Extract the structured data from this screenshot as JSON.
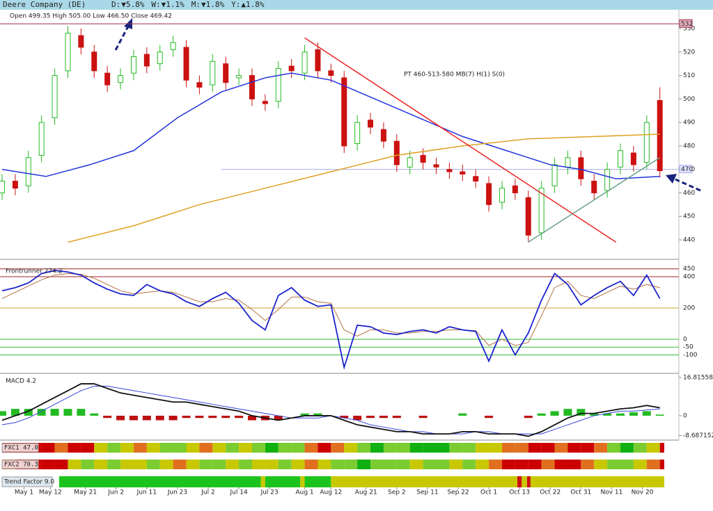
{
  "header": {
    "title": "Deere Company (DE)",
    "changes": [
      {
        "label": "D:",
        "value": "▼5.8%",
        "color": "#cc0000"
      },
      {
        "label": "W:",
        "value": "▼1.1%",
        "color": "#cc0000"
      },
      {
        "label": "M:",
        "value": "▼1.8%",
        "color": "#cc0000"
      },
      {
        "label": "Y:",
        "value": "▲1.8%",
        "color": "#119911"
      }
    ],
    "ohlc": "Open 499.35  High 505.00  Low 466.50  Close 469.42"
  },
  "chart_data": [
    {
      "type": "candlestick",
      "annotation": "PT 460-513-580 MB(7) H(1) S(0)",
      "xlim": [
        0,
        151
      ],
      "ylim": [
        432,
        538
      ],
      "yticks": [
        440,
        450,
        460,
        470,
        480,
        490,
        500,
        510,
        520,
        530
      ],
      "xticks": [
        {
          "value": 5,
          "label": "May 1"
        },
        {
          "value": 11,
          "label": "May 12"
        },
        {
          "value": 19,
          "label": "May 21"
        },
        {
          "value": 26,
          "label": "Jun 2"
        },
        {
          "value": 33,
          "label": "Jun 11"
        },
        {
          "value": 40,
          "label": "Jun 23"
        },
        {
          "value": 47,
          "label": "Jul 2"
        },
        {
          "value": 54,
          "label": "Jul 14"
        },
        {
          "value": 61,
          "label": "Jul 23"
        },
        {
          "value": 69,
          "label": "Aug 1"
        },
        {
          "value": 75,
          "label": "Aug 12"
        },
        {
          "value": 83,
          "label": "Aug 21"
        },
        {
          "value": 90,
          "label": "Sep 2"
        },
        {
          "value": 97,
          "label": "Sep 11"
        },
        {
          "value": 104,
          "label": "Sep 22"
        },
        {
          "value": 111,
          "label": "Oct 1"
        },
        {
          "value": 118,
          "label": "Oct 13"
        },
        {
          "value": 125,
          "label": "Oct 22"
        },
        {
          "value": 132,
          "label": "Oct 31"
        },
        {
          "value": 139,
          "label": "Nov 11"
        },
        {
          "value": 146,
          "label": "Nov 20"
        }
      ],
      "up_color": "#22bb22",
      "down_color": "#cc1111",
      "x": [
        0,
        3,
        6,
        9,
        12,
        15,
        18,
        21,
        24,
        27,
        30,
        33,
        36,
        39,
        42,
        45,
        48,
        51,
        54,
        57,
        60,
        63,
        66,
        69,
        72,
        75,
        78,
        81,
        84,
        87,
        90,
        93,
        96,
        99,
        102,
        105,
        108,
        111,
        114,
        117,
        120,
        123,
        126,
        129,
        132,
        135,
        138,
        141,
        144,
        147,
        150
      ],
      "open": [
        460,
        465,
        463,
        476,
        492,
        512,
        527,
        520,
        511,
        507,
        511,
        519,
        515,
        521,
        522,
        507,
        506,
        515,
        509,
        510,
        499,
        499,
        514,
        511,
        521,
        512,
        509,
        481,
        491,
        487,
        482,
        471,
        476,
        472,
        470,
        469,
        467,
        464,
        456,
        463,
        458,
        443,
        463,
        471,
        475,
        465,
        461,
        471,
        477,
        473,
        499.35
      ],
      "high": [
        468,
        468,
        478,
        493,
        513,
        531,
        530,
        523,
        514,
        513,
        521,
        522,
        523,
        527,
        525,
        510,
        519,
        518,
        513,
        513,
        502,
        516,
        517,
        523,
        524,
        515,
        512,
        493,
        494,
        490,
        485,
        478,
        479,
        475,
        473,
        472,
        470,
        467,
        465,
        466,
        461,
        465,
        475,
        478,
        478,
        468,
        473,
        481,
        480,
        493,
        505
      ],
      "low": [
        457,
        459,
        460,
        473,
        489,
        509,
        519,
        509,
        503,
        504,
        508,
        511,
        512,
        518,
        505,
        502,
        503,
        504,
        506,
        497,
        495,
        496,
        509,
        508,
        509,
        507,
        477,
        478,
        485,
        479,
        469,
        468,
        470,
        468,
        466,
        465,
        462,
        452,
        453,
        457,
        439,
        440,
        460,
        468,
        463,
        457,
        458,
        468,
        469,
        470,
        466.5
      ],
      "close": [
        465,
        462,
        475,
        490,
        510,
        528,
        522,
        512,
        506,
        510,
        518,
        514,
        520,
        524,
        508,
        505,
        516,
        507,
        510,
        500,
        498,
        513,
        512,
        520,
        512,
        510,
        480,
        490,
        488,
        482,
        472,
        475,
        473,
        471,
        469,
        468,
        465,
        455,
        462,
        460,
        442,
        462,
        472,
        475,
        466,
        460,
        470,
        478,
        472,
        490,
        469.42
      ],
      "overlays": [
        {
          "color": "#2233dd",
          "x": [
            0,
            10,
            20,
            30,
            40,
            50,
            60,
            66,
            75,
            85,
            95,
            105,
            115,
            125,
            132,
            140,
            150
          ],
          "values": [
            470,
            467,
            472,
            478,
            492,
            503,
            509,
            511,
            508,
            500,
            492,
            484,
            478,
            472,
            470,
            466,
            467
          ]
        },
        {
          "color": "#e0a020",
          "x": [
            15,
            30,
            45,
            60,
            75,
            90,
            105,
            120,
            135,
            150
          ],
          "values": [
            439,
            446,
            455,
            462,
            469,
            476,
            480,
            483,
            484,
            485
          ]
        },
        {
          "color": "#ee2222",
          "x": [
            69,
            140
          ],
          "values": [
            526,
            439
          ]
        },
        {
          "color": "#66a088",
          "x": [
            120,
            150
          ],
          "values": [
            439,
            475
          ]
        }
      ],
      "hlines": [
        {
          "value": 532,
          "color": "#a0304a"
        },
        {
          "value": 470,
          "color": "#aab0ee"
        }
      ]
    },
    {
      "type": "line",
      "title": "Frontrunner 274.2",
      "ylim": [
        -209,
        502
      ],
      "yticks": [
        450,
        400,
        200,
        0,
        -50,
        -100
      ],
      "tick_colors": [
        "#a02020",
        "#a02020",
        "#d0a030",
        "#33bb33",
        "#33bb33",
        "#33bb33"
      ],
      "series": [
        {
          "color": "#1a22cc",
          "values": [
            310,
            330,
            360,
            420,
            440,
            430,
            410,
            360,
            320,
            290,
            280,
            350,
            310,
            290,
            240,
            210,
            260,
            300,
            230,
            120,
            60,
            280,
            330,
            250,
            210,
            220,
            -180,
            90,
            80,
            40,
            30,
            50,
            60,
            40,
            80,
            60,
            50,
            -140,
            60,
            -100,
            40,
            250,
            420,
            350,
            220,
            280,
            330,
            370,
            280,
            410,
            260
          ]
        },
        {
          "color": "#b07040",
          "values": [
            260,
            300,
            340,
            380,
            410,
            420,
            415,
            390,
            350,
            310,
            290,
            300,
            310,
            300,
            270,
            240,
            240,
            260,
            250,
            190,
            120,
            190,
            270,
            270,
            240,
            230,
            60,
            20,
            60,
            60,
            40,
            40,
            50,
            50,
            60,
            60,
            55,
            -40,
            0,
            -40,
            -20,
            150,
            330,
            370,
            280,
            260,
            300,
            340,
            320,
            350,
            330
          ]
        }
      ]
    },
    {
      "type": "macd",
      "title": "MACD 4.2",
      "ylim": [
        -10.4,
        18.3
      ],
      "yticks": [
        16.81558,
        0,
        -8.687152
      ],
      "pos_color": "#22bb22",
      "neg_color": "#bb1111",
      "histogram": [
        2,
        3,
        3,
        3,
        3,
        3,
        3,
        1,
        -1,
        -2,
        -2,
        -2,
        -2,
        -2,
        -1,
        -1,
        -1,
        -1,
        -1,
        -2,
        -2,
        -2,
        0,
        1,
        1,
        0,
        -1,
        -2,
        -1,
        -1,
        -1,
        0,
        -1,
        0,
        0,
        1,
        0,
        -1,
        0,
        0,
        -1,
        1,
        2,
        3,
        3,
        1,
        1,
        1,
        1.5,
        2,
        0.5
      ],
      "series": [
        {
          "color": "#111111",
          "values": [
            -2,
            0,
            2,
            5,
            8,
            11,
            14,
            14,
            12,
            10,
            9,
            8,
            7,
            6,
            6,
            5,
            4,
            3,
            2,
            0,
            -1,
            -2,
            -1,
            0,
            0,
            0,
            -2,
            -4,
            -5,
            -6,
            -7,
            -7,
            -8,
            -8,
            -8,
            -7,
            -7,
            -8,
            -8,
            -8,
            -9,
            -7,
            -4,
            -1,
            1,
            1,
            2,
            3,
            3.5,
            4.5,
            3.5
          ]
        },
        {
          "color": "#3344dd",
          "values": [
            -4,
            -3,
            -1,
            2,
            5,
            8,
            11,
            13,
            13,
            12,
            11,
            10,
            9,
            8,
            7,
            6,
            5,
            4,
            3,
            2,
            1,
            0,
            -1,
            -1,
            -1,
            0,
            -1,
            -2,
            -4,
            -5,
            -6,
            -7,
            -7,
            -8,
            -8,
            -8,
            -7,
            -7,
            -8,
            -8,
            -8,
            -8,
            -6,
            -4,
            -2,
            0,
            1,
            2,
            2,
            2.5,
            3
          ]
        }
      ]
    }
  ],
  "strips": {
    "palette": [
      "#cc0000",
      "#e07020",
      "#c8c800",
      "#7acc30",
      "#10b010"
    ],
    "rows": [
      {
        "title": "FXC1 47.0",
        "values": [
          0,
          0,
          0,
          0,
          1,
          0,
          0,
          2,
          3,
          2,
          1,
          2,
          3,
          3,
          2,
          1,
          2,
          3,
          2,
          3,
          4,
          3,
          3,
          1,
          0,
          1,
          2,
          3,
          4,
          3,
          3,
          4,
          4,
          4,
          3,
          3,
          2,
          2,
          1,
          1,
          0,
          0,
          1,
          0,
          0,
          1,
          3,
          4,
          3,
          2,
          0
        ]
      },
      {
        "title": "FXC2 70.3",
        "values": [
          1,
          0,
          0,
          0,
          0,
          2,
          3,
          2,
          3,
          2,
          2,
          3,
          2,
          1,
          2,
          3,
          3,
          2,
          3,
          2,
          2,
          3,
          2,
          1,
          2,
          3,
          3,
          4,
          3,
          3,
          3,
          2,
          3,
          3,
          2,
          3,
          2,
          1,
          0,
          0,
          0,
          1,
          0,
          0,
          1,
          2,
          3,
          3,
          2,
          1,
          0
        ]
      }
    ],
    "trend": {
      "title": "Trend Factor 9.0",
      "palette": [
        "#c8c800",
        "#1dc31d",
        "#cc1111"
      ],
      "segments": [
        {
          "from": 13,
          "to": 59,
          "level": 1
        },
        {
          "from": 59,
          "to": 60,
          "level": 0
        },
        {
          "from": 60,
          "to": 68,
          "level": 1
        },
        {
          "from": 68,
          "to": 69,
          "level": 0
        },
        {
          "from": 69,
          "to": 75,
          "level": 1
        },
        {
          "from": 75,
          "to": 117.5,
          "level": 0
        },
        {
          "from": 117.5,
          "to": 118.5,
          "level": 2
        },
        {
          "from": 118.5,
          "to": 119.7,
          "level": 0
        },
        {
          "from": 119.7,
          "to": 120.5,
          "level": 2
        },
        {
          "from": 120.5,
          "to": 151,
          "level": 0
        }
      ]
    }
  }
}
